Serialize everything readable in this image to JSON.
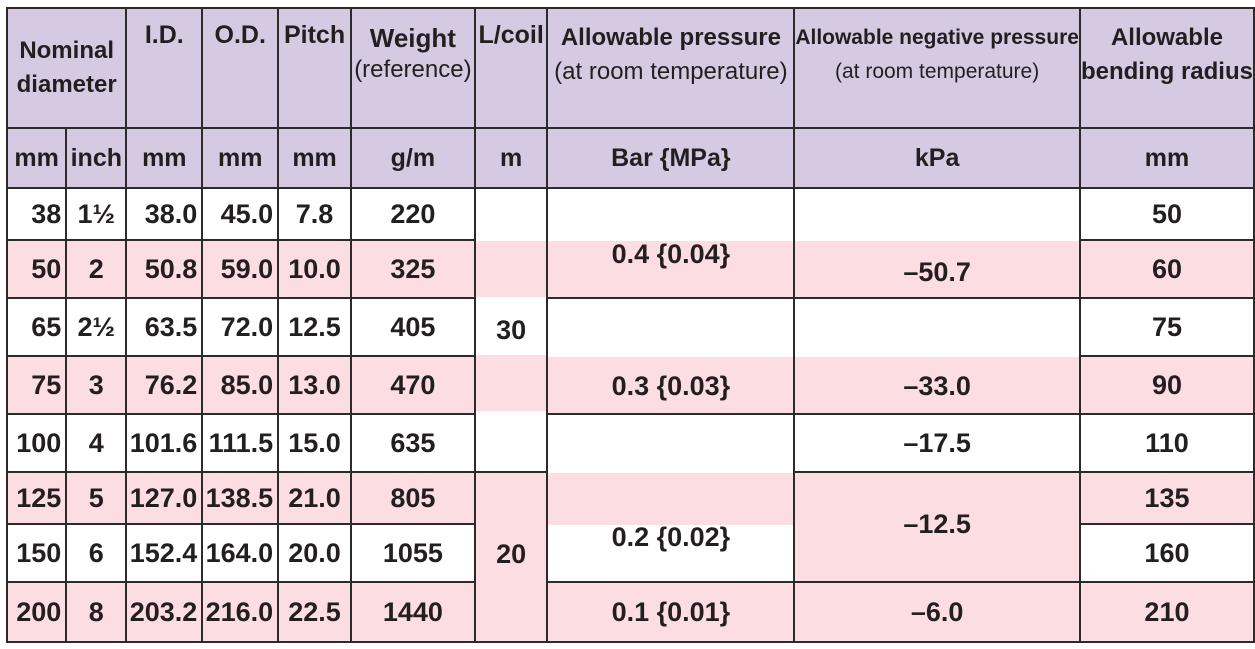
{
  "headers": {
    "nominal_line1": "Nominal",
    "nominal_line2": "diameter",
    "id": "I.D.",
    "od": "O.D.",
    "pitch": "Pitch",
    "weight_line1": "Weight",
    "weight_line2": "(reference)",
    "lcoil": "L/coil",
    "pressure_line1": "Allowable pressure",
    "pressure_line2": "(at room temperature)",
    "negpressure_line1": "Allowable  negative pressure",
    "negpressure_line2": "(at room temperature)",
    "bending_line1": "Allowable",
    "bending_line2": "bending radius"
  },
  "units": {
    "nominal_mm": "mm",
    "nominal_inch": "inch",
    "id": "mm",
    "od": "mm",
    "pitch": "mm",
    "weight": "g/m",
    "lcoil": "m",
    "pressure": "Bar {MPa}",
    "negpressure": "kPa",
    "bending": "mm"
  },
  "rows": [
    {
      "mm": "38",
      "inch": "1½",
      "id": "38.0",
      "od": "45.0",
      "pitch": "7.8",
      "weight": "220",
      "bending": "50"
    },
    {
      "mm": "50",
      "inch": "2",
      "id": "50.8",
      "od": "59.0",
      "pitch": "10.0",
      "weight": "325",
      "bending": "60"
    },
    {
      "mm": "65",
      "inch": "2½",
      "id": "63.5",
      "od": "72.0",
      "pitch": "12.5",
      "weight": "405",
      "bending": "75"
    },
    {
      "mm": "75",
      "inch": "3",
      "id": "76.2",
      "od": "85.0",
      "pitch": "13.0",
      "weight": "470",
      "bending": "90"
    },
    {
      "mm": "100",
      "inch": "4",
      "id": "101.6",
      "od": "111.5",
      "pitch": "15.0",
      "weight": "635",
      "bending": "110"
    },
    {
      "mm": "125",
      "inch": "5",
      "id": "127.0",
      "od": "138.5",
      "pitch": "21.0",
      "weight": "805",
      "bending": "135"
    },
    {
      "mm": "150",
      "inch": "6",
      "id": "152.4",
      "od": "164.0",
      "pitch": "20.0",
      "weight": "1055",
      "bending": "160"
    },
    {
      "mm": "200",
      "inch": "8",
      "id": "203.2",
      "od": "216.0",
      "pitch": "22.5",
      "weight": "1440",
      "bending": "210"
    }
  ],
  "lcoil": {
    "group1": "30",
    "group2": "20"
  },
  "pressure": {
    "p1": "0.4 {0.04}",
    "p2": "0.3 {0.03}",
    "p3": "0.2 {0.02}",
    "p4": "0.1 {0.01}"
  },
  "negpressure": {
    "n1": "–50.7",
    "n2": "–33.0",
    "n3": "–17.5",
    "n4": "–12.5",
    "n5": "–6.0"
  },
  "colors": {
    "header_bg": "#d5cae2",
    "pink_row": "#fbdde2",
    "border": "#2b2b2b"
  }
}
